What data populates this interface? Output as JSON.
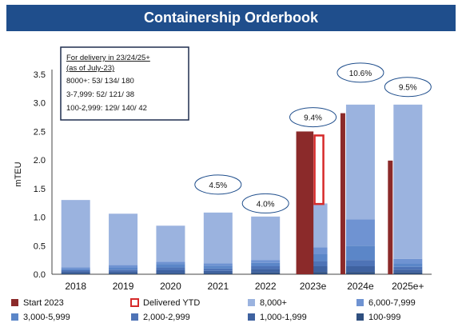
{
  "chart_data": {
    "type": "bar",
    "title": "Containership Orderbook",
    "ylabel": "mTEU",
    "ylim": [
      0,
      3.5
    ],
    "yticks": [
      "0.0",
      "0.5",
      "1.0",
      "1.5",
      "2.0",
      "2.5",
      "3.0",
      "3.5"
    ],
    "categories": [
      "2018",
      "2019",
      "2020",
      "2021",
      "2022",
      "2023e",
      "2024e",
      "2025e+"
    ],
    "stacked_series": [
      {
        "name": "100-999",
        "color": "#2f4f7f",
        "values": [
          0.02,
          0.02,
          0.02,
          0.02,
          0.03,
          0.04,
          0.04,
          0.03
        ]
      },
      {
        "name": "1,000-1,999",
        "color": "#3f62a0",
        "values": [
          0.03,
          0.03,
          0.05,
          0.04,
          0.06,
          0.1,
          0.1,
          0.05
        ]
      },
      {
        "name": "2,000-2,999",
        "color": "#4e73b6",
        "values": [
          0.02,
          0.03,
          0.05,
          0.04,
          0.05,
          0.09,
          0.11,
          0.05
        ]
      },
      {
        "name": "3,000-5,999",
        "color": "#5b86c8",
        "values": [
          0.02,
          0.04,
          0.06,
          0.05,
          0.06,
          0.12,
          0.25,
          0.06
        ]
      },
      {
        "name": "6,000-7,999",
        "color": "#6f93d2",
        "values": [
          0.03,
          0.04,
          0.04,
          0.04,
          0.05,
          0.12,
          0.46,
          0.08
        ]
      },
      {
        "name": "8,000+",
        "color": "#9bb3df",
        "values": [
          1.18,
          0.9,
          0.63,
          0.89,
          0.76,
          0.77,
          2.01,
          2.7
        ]
      }
    ],
    "start_2023": {
      "name": "Start 2023",
      "color": "#8b2a2a",
      "values": [
        null,
        null,
        null,
        null,
        null,
        2.5,
        2.82,
        1.99
      ]
    },
    "delivered_ytd": {
      "name": "Delivered YTD",
      "color": "#d62a2a",
      "category": "2023e",
      "y_from": 1.23,
      "y_to": 2.43
    },
    "annotations": [
      {
        "label": "4.5%",
        "category": "2021",
        "y": 1.57
      },
      {
        "label": "4.0%",
        "category": "2022",
        "y": 1.24
      },
      {
        "label": "9.4%",
        "category": "2023e",
        "y": 2.75
      },
      {
        "label": "10.6%",
        "category": "2024e",
        "y": 3.53
      },
      {
        "label": "9.5%",
        "category": "2025e+",
        "y": 3.28
      }
    ],
    "note": {
      "lines": [
        "For delivery in 23/24/25+",
        "(as of July-23)",
        "8000+: 53/ 134/ 180",
        "3-7,999: 52/ 121/ 38",
        "100-2,999: 129/ 140/ 42"
      ]
    },
    "legend_order": [
      "Start 2023",
      "Delivered YTD",
      "8,000+",
      "6,000-7,999",
      "3,000-5,999",
      "2,000-2,999",
      "1,000-1,999",
      "100-999"
    ]
  }
}
